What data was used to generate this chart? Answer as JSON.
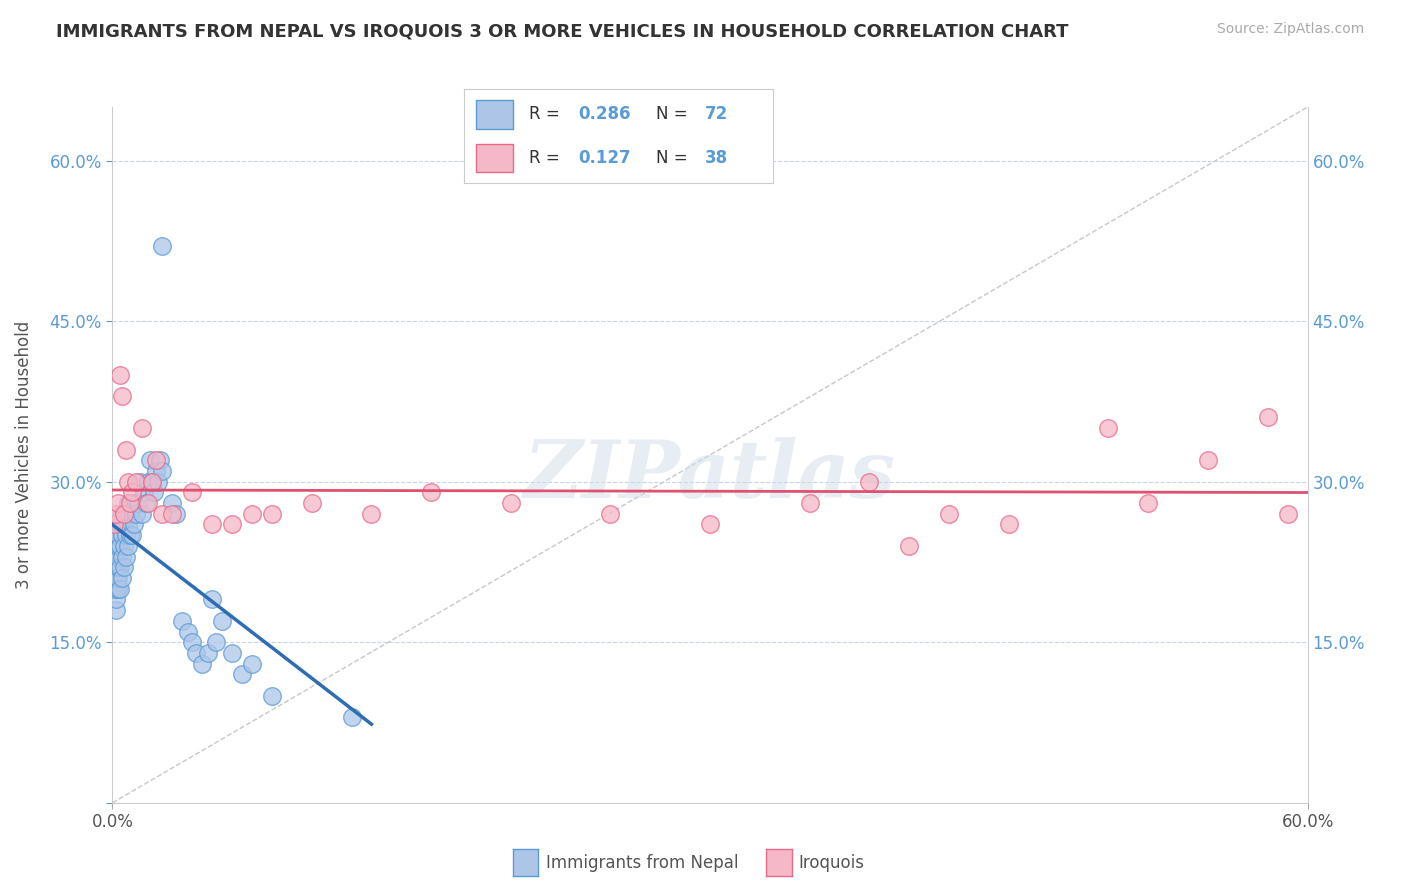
{
  "title": "IMMIGRANTS FROM NEPAL VS IROQUOIS 3 OR MORE VEHICLES IN HOUSEHOLD CORRELATION CHART",
  "source": "Source: ZipAtlas.com",
  "ylabel": "3 or more Vehicles in Household",
  "xlim": [
    0.0,
    0.6
  ],
  "ylim": [
    0.0,
    0.65
  ],
  "xticks": [
    0.0,
    0.6
  ],
  "yticks": [
    0.0,
    0.15,
    0.3,
    0.45,
    0.6
  ],
  "xticklabels": [
    "0.0%",
    "60.0%"
  ],
  "yticklabels_left": [
    "",
    "15.0%",
    "30.0%",
    "45.0%",
    "60.0%"
  ],
  "yticklabels_right": [
    "",
    "15.0%",
    "30.0%",
    "45.0%",
    "60.0%"
  ],
  "legend_label1": "Immigrants from Nepal",
  "legend_label2": "Iroquois",
  "color_nepal_fill": "#adc6e8",
  "color_nepal_edge": "#5b9bd5",
  "color_iroquois_fill": "#f4b8c8",
  "color_iroquois_edge": "#e8698a",
  "color_nepal_line": "#2e6db4",
  "color_iroquois_line": "#e05070",
  "color_grid": "#c8d4e8",
  "watermark": "ZIPatlas",
  "nepal_x": [
    0.001,
    0.001,
    0.001,
    0.001,
    0.001,
    0.002,
    0.002,
    0.002,
    0.002,
    0.002,
    0.002,
    0.002,
    0.002,
    0.002,
    0.003,
    0.003,
    0.003,
    0.003,
    0.003,
    0.003,
    0.004,
    0.004,
    0.004,
    0.004,
    0.005,
    0.005,
    0.005,
    0.005,
    0.006,
    0.006,
    0.006,
    0.007,
    0.007,
    0.007,
    0.008,
    0.008,
    0.008,
    0.009,
    0.009,
    0.01,
    0.01,
    0.011,
    0.012,
    0.013,
    0.014,
    0.015,
    0.016,
    0.017,
    0.018,
    0.019,
    0.02,
    0.021,
    0.022,
    0.023,
    0.024,
    0.025,
    0.03,
    0.032,
    0.035,
    0.038,
    0.04,
    0.042,
    0.045,
    0.048,
    0.05,
    0.052,
    0.055,
    0.06,
    0.065,
    0.07,
    0.08,
    0.12
  ],
  "nepal_y": [
    0.2,
    0.21,
    0.22,
    0.23,
    0.24,
    0.18,
    0.19,
    0.2,
    0.21,
    0.22,
    0.23,
    0.24,
    0.25,
    0.26,
    0.2,
    0.21,
    0.22,
    0.23,
    0.24,
    0.25,
    0.2,
    0.22,
    0.24,
    0.26,
    0.21,
    0.23,
    0.25,
    0.27,
    0.22,
    0.24,
    0.26,
    0.23,
    0.25,
    0.27,
    0.24,
    0.26,
    0.28,
    0.25,
    0.27,
    0.25,
    0.28,
    0.26,
    0.27,
    0.28,
    0.3,
    0.27,
    0.29,
    0.28,
    0.3,
    0.32,
    0.3,
    0.29,
    0.31,
    0.3,
    0.32,
    0.31,
    0.28,
    0.27,
    0.17,
    0.16,
    0.15,
    0.14,
    0.13,
    0.14,
    0.19,
    0.15,
    0.17,
    0.14,
    0.12,
    0.13,
    0.1,
    0.08
  ],
  "nepal_outlier_x": [
    0.025
  ],
  "nepal_outlier_y": [
    0.52
  ],
  "iroquois_x": [
    0.001,
    0.002,
    0.003,
    0.004,
    0.005,
    0.006,
    0.007,
    0.008,
    0.009,
    0.01,
    0.012,
    0.015,
    0.018,
    0.02,
    0.022,
    0.025,
    0.03,
    0.04,
    0.05,
    0.06,
    0.07,
    0.08,
    0.1,
    0.13,
    0.16,
    0.2,
    0.25,
    0.3,
    0.35,
    0.38,
    0.4,
    0.42,
    0.45,
    0.5,
    0.52,
    0.55,
    0.58,
    0.59
  ],
  "iroquois_y": [
    0.26,
    0.27,
    0.28,
    0.4,
    0.38,
    0.27,
    0.33,
    0.3,
    0.28,
    0.29,
    0.3,
    0.35,
    0.28,
    0.3,
    0.32,
    0.27,
    0.27,
    0.29,
    0.26,
    0.26,
    0.27,
    0.27,
    0.28,
    0.27,
    0.29,
    0.28,
    0.27,
    0.26,
    0.28,
    0.3,
    0.24,
    0.27,
    0.26,
    0.35,
    0.28,
    0.32,
    0.36,
    0.27
  ]
}
